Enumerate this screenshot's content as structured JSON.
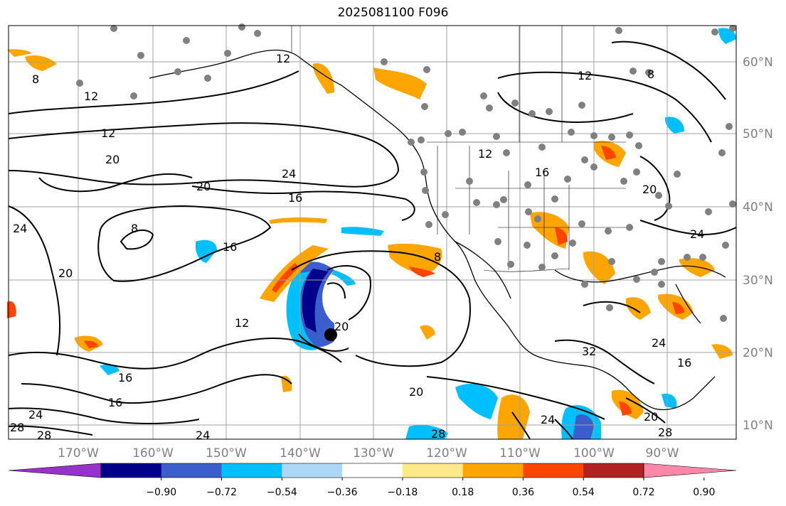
{
  "title": "2025081100 F096",
  "map": {
    "lat_labels": [
      "60°N",
      "50°N",
      "40°N",
      "30°N",
      "20°N",
      "10°N"
    ],
    "lon_labels": [
      "170°W",
      "160°W",
      "150°W",
      "140°W",
      "130°W",
      "120°W",
      "110°W",
      "100°W",
      "90°W"
    ],
    "contour_labels": [
      "8",
      "12",
      "12",
      "12",
      "20",
      "20",
      "24",
      "16",
      "8",
      "16",
      "24",
      "20",
      "12",
      "20",
      "16",
      "16",
      "24",
      "28",
      "28",
      "24",
      "20",
      "28",
      "8",
      "12",
      "16",
      "20",
      "24",
      "32",
      "24",
      "16",
      "20",
      "28",
      "8",
      "24"
    ],
    "colors": {
      "gridline": "#a0a0a0",
      "label_gray": "#808080",
      "contour": "#000000"
    }
  },
  "colorbar": {
    "tick_labels": [
      "−0.90",
      "−0.72",
      "−0.54",
      "−0.36",
      "−0.18",
      "0.18",
      "0.36",
      "0.54",
      "0.72",
      "0.90"
    ],
    "colors": [
      "#9932cc",
      "#00008b",
      "#3a5fcd",
      "#00bfff",
      "#add8f5",
      "#ffffff",
      "#ffe88a",
      "#ffa500",
      "#ff4500",
      "#b22222",
      "#ff88aa"
    ]
  }
}
